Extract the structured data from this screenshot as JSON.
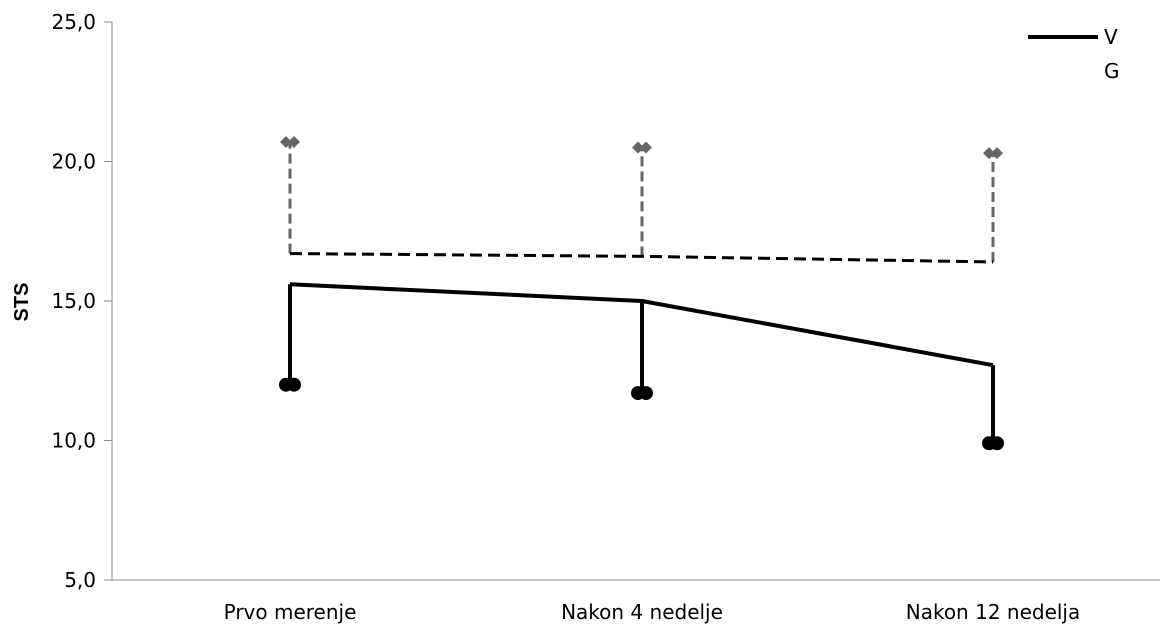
{
  "chart_data": {
    "type": "line",
    "title": "",
    "xlabel": "",
    "ylabel": "STS",
    "categories": [
      "Prvo merenje",
      "Nakon 4 nedelje",
      "Nakon 12 nedelja"
    ],
    "ylim": [
      5.0,
      25.0
    ],
    "yticks": [
      "5,0",
      "10,0",
      "15,0",
      "20,0",
      "25,0"
    ],
    "ytick_values": [
      5,
      10,
      15,
      20,
      25
    ],
    "grid": false,
    "legend_position": "top-right",
    "series": [
      {
        "name": "V",
        "style": "solid",
        "color": "#000000",
        "values": [
          15.6,
          15.0,
          12.7
        ],
        "error_values": [
          12.0,
          11.7,
          9.9
        ],
        "error_marker": "circle"
      },
      {
        "name": "G",
        "style": "dashed",
        "color": "#000000",
        "error_color": "#666666",
        "values": [
          16.7,
          16.6,
          16.4
        ],
        "error_values": [
          20.7,
          20.5,
          20.3
        ],
        "error_marker": "diamond"
      }
    ]
  }
}
